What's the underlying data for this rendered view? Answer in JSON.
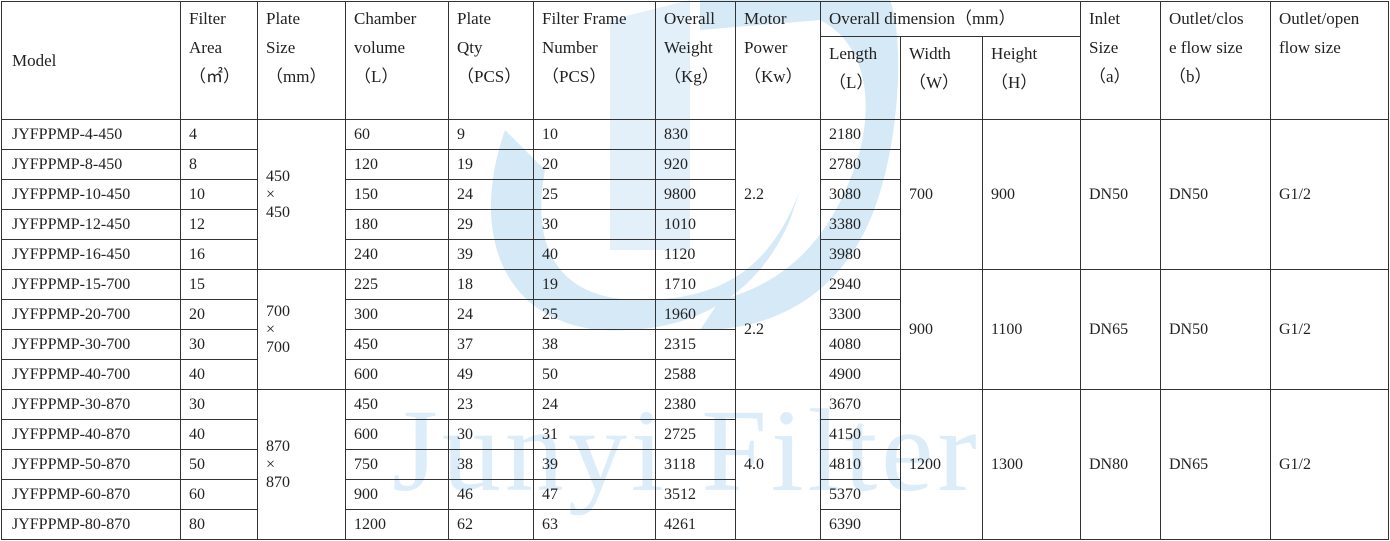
{
  "watermark": "Junyi Filter",
  "table": {
    "headers": {
      "model": "Model",
      "filter_area": [
        "Filter",
        "Area",
        "（㎡）"
      ],
      "plate_size": [
        "Plate",
        "Size",
        "（mm）"
      ],
      "chamber_volume": [
        "Chamber",
        "volume",
        "（L）"
      ],
      "plate_qty": [
        "Plate",
        "Qty",
        "（PCS）"
      ],
      "frame_number": [
        "Filter Frame",
        "Number",
        "（PCS）"
      ],
      "overall_weight": [
        "Overall",
        "Weight",
        "（Kg）"
      ],
      "motor_power": [
        "Motor",
        "Power",
        "（Kw）"
      ],
      "overall_dimension": "Overall dimension（mm）",
      "length": [
        "Length",
        "（L）"
      ],
      "width": [
        "Width",
        "（W）"
      ],
      "height": [
        "Height",
        "（H）"
      ],
      "inlet": [
        "Inlet",
        "Size",
        "（a）"
      ],
      "outlet_close": [
        "Outlet/clos",
        "e flow size",
        "（b）"
      ],
      "outlet_open": [
        "Outlet/open",
        "flow size"
      ]
    },
    "groups": [
      {
        "plate_size": [
          "450",
          "×",
          "450"
        ],
        "motor_power": "2.2",
        "width": "700",
        "height": "900",
        "inlet": "DN50",
        "outlet_close": "DN50",
        "outlet_open": "G1/2",
        "rows": [
          [
            "JYFPPMP-4-450",
            "4",
            "60",
            "9",
            "10",
            "830",
            "2180"
          ],
          [
            "JYFPPMP-8-450",
            "8",
            "120",
            "19",
            "20",
            "920",
            "2780"
          ],
          [
            "JYFPPMP-10-450",
            "10",
            "150",
            "24",
            "25",
            "9800",
            "3080"
          ],
          [
            "JYFPPMP-12-450",
            "12",
            "180",
            "29",
            "30",
            "1010",
            "3380"
          ],
          [
            "JYFPPMP-16-450",
            "16",
            "240",
            "39",
            "40",
            "1120",
            "3980"
          ]
        ]
      },
      {
        "plate_size": [
          "700",
          "×",
          "700"
        ],
        "motor_power": "2.2",
        "width": "900",
        "height": "1100",
        "inlet": "DN65",
        "outlet_close": "DN50",
        "outlet_open": "G1/2",
        "rows": [
          [
            "JYFPPMP-15-700",
            "15",
            "225",
            "18",
            "19",
            "1710",
            "2940"
          ],
          [
            "JYFPPMP-20-700",
            "20",
            "300",
            "24",
            "25",
            "1960",
            "3300"
          ],
          [
            "JYFPPMP-30-700",
            "30",
            "450",
            "37",
            "38",
            "2315",
            "4080"
          ],
          [
            "JYFPPMP-40-700",
            "40",
            "600",
            "49",
            "50",
            "2588",
            "4900"
          ]
        ]
      },
      {
        "plate_size": [
          "870",
          "×",
          "870"
        ],
        "motor_power": "4.0",
        "width": "1200",
        "height": "1300",
        "inlet": "DN80",
        "outlet_close": "DN65",
        "outlet_open": "G1/2",
        "rows": [
          [
            "JYFPPMP-30-870",
            "30",
            "450",
            "23",
            "24",
            "2380",
            "3670"
          ],
          [
            "JYFPPMP-40-870",
            "40",
            "600",
            "30",
            "31",
            "2725",
            "4150"
          ],
          [
            "JYFPPMP-50-870",
            "50",
            "750",
            "38",
            "39",
            "3118",
            "4810"
          ],
          [
            "JYFPPMP-60-870",
            "60",
            "900",
            "46",
            "47",
            "3512",
            "5370"
          ],
          [
            "JYFPPMP-80-870",
            "80",
            "1200",
            "62",
            "63",
            "4261",
            "6390"
          ]
        ]
      }
    ]
  }
}
